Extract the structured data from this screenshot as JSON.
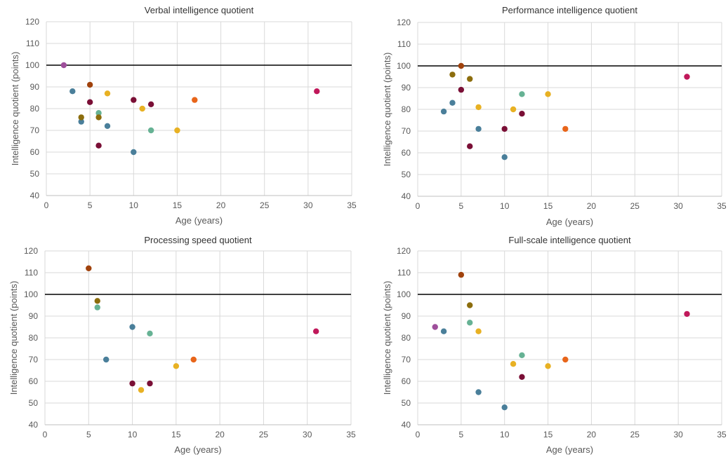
{
  "chart_data": [
    {
      "type": "scatter",
      "title": "Verbal intelligence quotient",
      "xlabel": "Age (years)",
      "ylabel": "Intelligence quotient (points)",
      "xlim": [
        0,
        35
      ],
      "ylim": [
        40,
        120
      ],
      "xticks": [
        0,
        5,
        10,
        15,
        20,
        25,
        30,
        35
      ],
      "yticks": [
        40,
        50,
        60,
        70,
        80,
        90,
        100,
        110,
        120
      ],
      "reference_line": 100,
      "grid": true,
      "points": [
        {
          "x": 2,
          "y": 100,
          "color": "#9e4f9b"
        },
        {
          "x": 3,
          "y": 88,
          "color": "#4a7f9a"
        },
        {
          "x": 4,
          "y": 74,
          "color": "#4a7f9a"
        },
        {
          "x": 4,
          "y": 76,
          "color": "#8c6d0d"
        },
        {
          "x": 5,
          "y": 91,
          "color": "#a0420c"
        },
        {
          "x": 5,
          "y": 83,
          "color": "#7a0f36"
        },
        {
          "x": 6,
          "y": 78,
          "color": "#66b294"
        },
        {
          "x": 6,
          "y": 76,
          "color": "#8c6d0d"
        },
        {
          "x": 6,
          "y": 63,
          "color": "#7a0f36"
        },
        {
          "x": 7,
          "y": 87,
          "color": "#e8b123"
        },
        {
          "x": 7,
          "y": 72,
          "color": "#4a7f9a"
        },
        {
          "x": 10,
          "y": 84,
          "color": "#7a0f36"
        },
        {
          "x": 10,
          "y": 60,
          "color": "#4a7f9a"
        },
        {
          "x": 11,
          "y": 80,
          "color": "#e8b123"
        },
        {
          "x": 12,
          "y": 82,
          "color": "#7a0f36"
        },
        {
          "x": 12,
          "y": 70,
          "color": "#66b294"
        },
        {
          "x": 15,
          "y": 70,
          "color": "#e8b123"
        },
        {
          "x": 17,
          "y": 84,
          "color": "#e8651a"
        },
        {
          "x": 31,
          "y": 88,
          "color": "#c0185a"
        }
      ]
    },
    {
      "type": "scatter",
      "title": "Performance intelligence quotient",
      "xlabel": "Age (years)",
      "ylabel": "Intelligence quotient (points)",
      "xlim": [
        0,
        35
      ],
      "ylim": [
        40,
        120
      ],
      "xticks": [
        0,
        5,
        10,
        15,
        20,
        25,
        30,
        35
      ],
      "yticks": [
        40,
        50,
        60,
        70,
        80,
        90,
        100,
        110,
        120
      ],
      "reference_line": 100,
      "grid": true,
      "points": [
        {
          "x": 3,
          "y": 79,
          "color": "#4a7f9a"
        },
        {
          "x": 4,
          "y": 83,
          "color": "#4a7f9a"
        },
        {
          "x": 4,
          "y": 96,
          "color": "#8c6d0d"
        },
        {
          "x": 5,
          "y": 100,
          "color": "#a0420c"
        },
        {
          "x": 5,
          "y": 89,
          "color": "#7a0f36"
        },
        {
          "x": 6,
          "y": 94,
          "color": "#8c6d0d"
        },
        {
          "x": 6,
          "y": 63,
          "color": "#7a0f36"
        },
        {
          "x": 7,
          "y": 81,
          "color": "#e8b123"
        },
        {
          "x": 7,
          "y": 71,
          "color": "#4a7f9a"
        },
        {
          "x": 10,
          "y": 71,
          "color": "#7a0f36"
        },
        {
          "x": 10,
          "y": 58,
          "color": "#4a7f9a"
        },
        {
          "x": 11,
          "y": 80,
          "color": "#e8b123"
        },
        {
          "x": 12,
          "y": 87,
          "color": "#66b294"
        },
        {
          "x": 12,
          "y": 78,
          "color": "#7a0f36"
        },
        {
          "x": 15,
          "y": 87,
          "color": "#e8b123"
        },
        {
          "x": 17,
          "y": 71,
          "color": "#e8651a"
        },
        {
          "x": 31,
          "y": 95,
          "color": "#c0185a"
        }
      ]
    },
    {
      "type": "scatter",
      "title": "Processing speed quotient",
      "xlabel": "Age (years)",
      "ylabel": "Intelligence quotient (points)",
      "xlim": [
        0,
        35
      ],
      "ylim": [
        40,
        120
      ],
      "xticks": [
        0,
        5,
        10,
        15,
        20,
        25,
        30,
        35
      ],
      "yticks": [
        40,
        50,
        60,
        70,
        80,
        90,
        100,
        110,
        120
      ],
      "reference_line": 100,
      "grid": true,
      "points": [
        {
          "x": 5,
          "y": 112,
          "color": "#a0420c"
        },
        {
          "x": 6,
          "y": 97,
          "color": "#8c6d0d"
        },
        {
          "x": 6,
          "y": 94,
          "color": "#66b294"
        },
        {
          "x": 7,
          "y": 70,
          "color": "#4a7f9a"
        },
        {
          "x": 10,
          "y": 85,
          "color": "#4a7f9a"
        },
        {
          "x": 10,
          "y": 59,
          "color": "#7a0f36"
        },
        {
          "x": 11,
          "y": 56,
          "color": "#e8b123"
        },
        {
          "x": 12,
          "y": 82,
          "color": "#66b294"
        },
        {
          "x": 12,
          "y": 59,
          "color": "#7a0f36"
        },
        {
          "x": 15,
          "y": 67,
          "color": "#e8b123"
        },
        {
          "x": 17,
          "y": 70,
          "color": "#e8651a"
        },
        {
          "x": 31,
          "y": 83,
          "color": "#c0185a"
        }
      ]
    },
    {
      "type": "scatter",
      "title": "Full-scale intelligence quotient",
      "xlabel": "Age (years)",
      "ylabel": "Intelligence quotient (points)",
      "xlim": [
        0,
        35
      ],
      "ylim": [
        40,
        120
      ],
      "xticks": [
        0,
        5,
        10,
        15,
        20,
        25,
        30,
        35
      ],
      "yticks": [
        40,
        50,
        60,
        70,
        80,
        90,
        100,
        110,
        120
      ],
      "reference_line": 100,
      "grid": true,
      "points": [
        {
          "x": 2,
          "y": 85,
          "color": "#9e4f9b"
        },
        {
          "x": 3,
          "y": 83,
          "color": "#4a7f9a"
        },
        {
          "x": 5,
          "y": 109,
          "color": "#a0420c"
        },
        {
          "x": 6,
          "y": 95,
          "color": "#8c6d0d"
        },
        {
          "x": 6,
          "y": 87,
          "color": "#66b294"
        },
        {
          "x": 7,
          "y": 83,
          "color": "#e8b123"
        },
        {
          "x": 7,
          "y": 55,
          "color": "#4a7f9a"
        },
        {
          "x": 10,
          "y": 48,
          "color": "#4a7f9a"
        },
        {
          "x": 11,
          "y": 68,
          "color": "#e8b123"
        },
        {
          "x": 12,
          "y": 72,
          "color": "#66b294"
        },
        {
          "x": 12,
          "y": 62,
          "color": "#7a0f36"
        },
        {
          "x": 15,
          "y": 67,
          "color": "#e8b123"
        },
        {
          "x": 17,
          "y": 70,
          "color": "#e8651a"
        },
        {
          "x": 31,
          "y": 91,
          "color": "#c0185a"
        }
      ]
    }
  ]
}
